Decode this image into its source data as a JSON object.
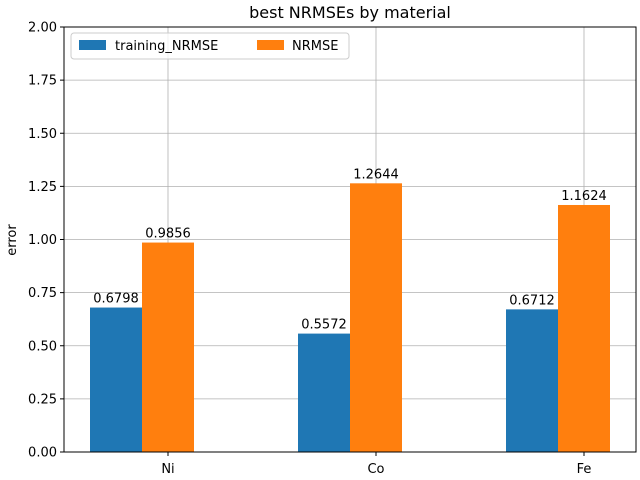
{
  "chart_data": {
    "type": "bar",
    "title": "best NRMSEs by material",
    "xlabel": "",
    "ylabel": "error",
    "categories": [
      "Ni",
      "Co",
      "Fe"
    ],
    "series": [
      {
        "name": "training_NRMSE",
        "values": [
          0.6798,
          0.5572,
          0.6712
        ],
        "labels": [
          "0.6798",
          "0.5572",
          "0.6712"
        ],
        "color": "#1f77b4"
      },
      {
        "name": "NRMSE",
        "values": [
          0.9856,
          1.2644,
          1.1624
        ],
        "labels": [
          "0.9856",
          "1.2644",
          "1.1624"
        ],
        "color": "#ff7f0e"
      }
    ],
    "ylim": [
      0,
      2.0
    ],
    "yticks": [
      "0.00",
      "0.25",
      "0.50",
      "0.75",
      "1.00",
      "1.25",
      "1.50",
      "1.75",
      "2.00"
    ],
    "grid": true,
    "legend_position": "top-left"
  }
}
